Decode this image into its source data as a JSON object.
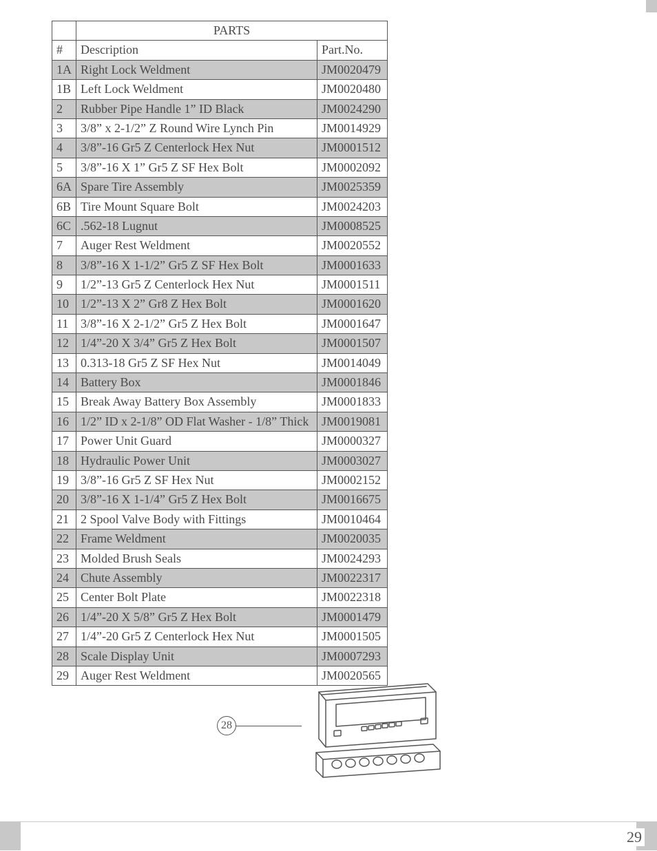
{
  "table": {
    "title": "PARTS",
    "headers": {
      "num": "#",
      "desc": "Description",
      "part": "Part.No."
    },
    "rows": [
      {
        "n": "1A",
        "d": "Right Lock Weldment",
        "p": "JM0020479",
        "shade": true
      },
      {
        "n": "1B",
        "d": "Left Lock Weldment",
        "p": "JM0020480",
        "shade": false
      },
      {
        "n": "2",
        "d": "Rubber Pipe Handle 1” ID Black",
        "p": "JM0024290",
        "shade": true
      },
      {
        "n": "3",
        "d": "3/8” x 2-1/2” Z Round Wire Lynch Pin",
        "p": "JM0014929",
        "shade": false
      },
      {
        "n": "4",
        "d": "3/8”-16 Gr5 Z Centerlock Hex Nut",
        "p": "JM0001512",
        "shade": true
      },
      {
        "n": "5",
        "d": "3/8”-16 X 1” Gr5 Z SF Hex Bolt",
        "p": "JM0002092",
        "shade": false
      },
      {
        "n": "6A",
        "d": "Spare Tire Assembly",
        "p": "JM0025359",
        "shade": true
      },
      {
        "n": "6B",
        "d": "Tire Mount Square Bolt",
        "p": "JM0024203",
        "shade": false
      },
      {
        "n": "6C",
        "d": ".562-18 Lugnut",
        "p": "JM0008525",
        "shade": true
      },
      {
        "n": "7",
        "d": "Auger Rest Weldment",
        "p": "JM0020552",
        "shade": false
      },
      {
        "n": "8",
        "d": "3/8”-16 X 1-1/2” Gr5 Z SF Hex Bolt",
        "p": "JM0001633",
        "shade": true
      },
      {
        "n": "9",
        "d": "1/2”-13 Gr5 Z Centerlock Hex Nut",
        "p": "JM0001511",
        "shade": false
      },
      {
        "n": "10",
        "d": "1/2”-13 X 2” Gr8 Z Hex Bolt",
        "p": "JM0001620",
        "shade": true
      },
      {
        "n": "11",
        "d": "3/8”-16 X 2-1/2” Gr5 Z Hex Bolt",
        "p": "JM0001647",
        "shade": false
      },
      {
        "n": "12",
        "d": "1/4”-20 X 3/4” Gr5 Z Hex Bolt",
        "p": "JM0001507",
        "shade": true
      },
      {
        "n": "13",
        "d": "0.313-18 Gr5 Z SF Hex Nut",
        "p": "JM0014049",
        "shade": false
      },
      {
        "n": "14",
        "d": "Battery Box",
        "p": "JM0001846",
        "shade": true
      },
      {
        "n": "15",
        "d": "Break Away Battery Box Assembly",
        "p": "JM0001833",
        "shade": false
      },
      {
        "n": "16",
        "d": "1/2” ID x 2-1/8” OD Flat Washer - 1/8” Thick",
        "p": "JM0019081",
        "shade": true
      },
      {
        "n": "17",
        "d": "Power Unit Guard",
        "p": "JM0000327",
        "shade": false
      },
      {
        "n": "18",
        "d": "Hydraulic Power Unit",
        "p": "JM0003027",
        "shade": true
      },
      {
        "n": "19",
        "d": "3/8”-16 Gr5 Z SF Hex Nut",
        "p": "JM0002152",
        "shade": false
      },
      {
        "n": "20",
        "d": "3/8”-16 X 1-1/4” Gr5 Z Hex Bolt",
        "p": "JM0016675",
        "shade": true
      },
      {
        "n": "21",
        "d": "2 Spool Valve Body with Fittings",
        "p": "JM0010464",
        "shade": false
      },
      {
        "n": "22",
        "d": "Frame Weldment",
        "p": "JM0020035",
        "shade": true
      },
      {
        "n": "23",
        "d": "Molded Brush Seals",
        "p": "JM0024293",
        "shade": false
      },
      {
        "n": "24",
        "d": "Chute Assembly",
        "p": "JM0022317",
        "shade": true
      },
      {
        "n": "25",
        "d": "Center Bolt Plate",
        "p": "JM0022318",
        "shade": false
      },
      {
        "n": "26",
        "d": "1/4”-20 X 5/8” Gr5 Z Hex Bolt",
        "p": "JM0001479",
        "shade": true
      },
      {
        "n": "27",
        "d": "1/4”-20 Gr5 Z Centerlock Hex Nut",
        "p": "JM0001505",
        "shade": false
      },
      {
        "n": "28",
        "d": "Scale Display Unit",
        "p": "JM0007293",
        "shade": true
      },
      {
        "n": "29",
        "d": "Auger Rest Weldment",
        "p": "JM0020565",
        "shade": false
      }
    ]
  },
  "diagram": {
    "callout": "28",
    "line_color": "#555555",
    "line_width": 1.5
  },
  "footer": {
    "page_number": "29"
  },
  "colors": {
    "shade": "#c8c8c8",
    "border": "#555555",
    "text": "#4a4a4a",
    "background": "#ffffff"
  }
}
